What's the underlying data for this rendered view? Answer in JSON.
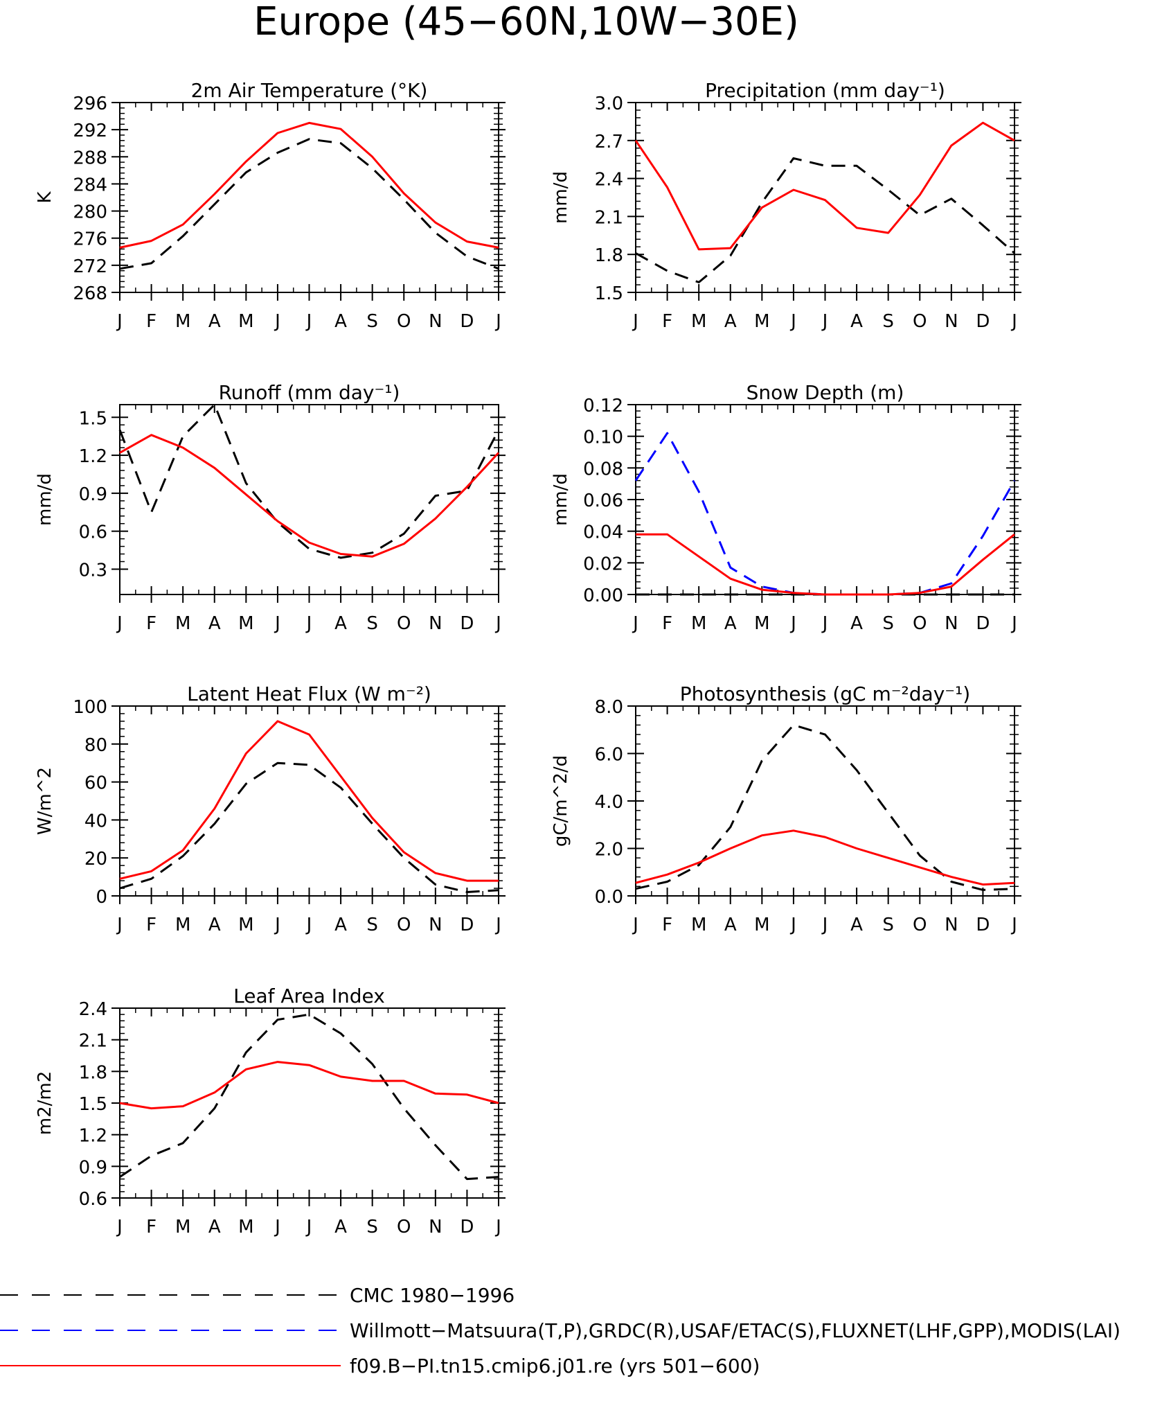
{
  "figure": {
    "title": "Europe (45−60N,10W−30E)",
    "months": [
      "J",
      "F",
      "M",
      "A",
      "M",
      "J",
      "J",
      "A",
      "S",
      "O",
      "N",
      "D",
      "J"
    ],
    "colors": {
      "obs": "#000000",
      "obs_alt": "#0000ff",
      "model": "#ff0000"
    }
  },
  "legend": [
    {
      "key": "obs",
      "label": "CMC 1980−1996",
      "color": "#000000",
      "dashed": true
    },
    {
      "key": "obs_alt",
      "label": "Willmott−Matsuura(T,P),GRDC(R),USAF/ETAC(S),FLUXNET(LHF,GPP),MODIS(LAI)",
      "color": "#0000ff",
      "dashed": true
    },
    {
      "key": "model",
      "label": "f09.B−PI.tn15.cmip6.j01.re (yrs 501−600)",
      "color": "#ff0000",
      "dashed": false
    }
  ],
  "chart_data": [
    {
      "type": "line",
      "title": "2m Air Temperature (°K)",
      "ylabel": "K",
      "ylim": [
        268,
        296
      ],
      "yticks": [
        "268",
        "272",
        "276",
        "280",
        "284",
        "288",
        "292",
        "296"
      ],
      "x": [
        "J",
        "F",
        "M",
        "A",
        "M",
        "J",
        "J",
        "A",
        "S",
        "O",
        "N",
        "D",
        "J"
      ],
      "series": [
        {
          "key": "obs",
          "dashed": true,
          "color": "#000000",
          "values": [
            271.5,
            272.3,
            276.3,
            281.0,
            285.7,
            288.6,
            290.6,
            290.0,
            286.3,
            281.7,
            276.8,
            273.3,
            271.5
          ]
        },
        {
          "key": "model",
          "dashed": false,
          "color": "#ff0000",
          "values": [
            274.6,
            275.6,
            278.0,
            282.5,
            287.3,
            291.5,
            293.0,
            292.1,
            288.0,
            282.6,
            278.3,
            275.5,
            274.6
          ]
        }
      ]
    },
    {
      "type": "line",
      "title": "Precipitation (mm day⁻¹)",
      "ylabel": "mm/d",
      "ylim": [
        1.5,
        3.0
      ],
      "yticks": [
        "1.5",
        "1.8",
        "2.1",
        "2.4",
        "2.7",
        "3.0"
      ],
      "x": [
        "J",
        "F",
        "M",
        "A",
        "M",
        "J",
        "J",
        "A",
        "S",
        "O",
        "N",
        "D",
        "J"
      ],
      "series": [
        {
          "key": "obs",
          "dashed": true,
          "color": "#000000",
          "values": [
            1.81,
            1.67,
            1.58,
            1.79,
            2.21,
            2.56,
            2.5,
            2.5,
            2.31,
            2.11,
            2.24,
            2.03,
            1.81
          ]
        },
        {
          "key": "model",
          "dashed": false,
          "color": "#ff0000",
          "values": [
            2.7,
            2.33,
            1.84,
            1.85,
            2.17,
            2.31,
            2.23,
            2.01,
            1.97,
            2.27,
            2.66,
            2.84,
            2.7
          ]
        }
      ]
    },
    {
      "type": "line",
      "title": "Runoff (mm day⁻¹)",
      "ylabel": "mm/d",
      "ylim": [
        0.1,
        1.6
      ],
      "yticks": [
        "0.3",
        "0.6",
        "0.9",
        "1.2",
        "1.5"
      ],
      "x": [
        "J",
        "F",
        "M",
        "A",
        "M",
        "J",
        "J",
        "A",
        "S",
        "O",
        "N",
        "D",
        "J"
      ],
      "series": [
        {
          "key": "obs",
          "dashed": true,
          "color": "#000000",
          "values": [
            1.4,
            0.75,
            1.35,
            1.6,
            0.98,
            0.67,
            0.46,
            0.39,
            0.43,
            0.58,
            0.88,
            0.92,
            1.4
          ]
        },
        {
          "key": "model",
          "dashed": false,
          "color": "#ff0000",
          "values": [
            1.22,
            1.36,
            1.26,
            1.1,
            0.89,
            0.68,
            0.51,
            0.42,
            0.4,
            0.5,
            0.7,
            0.95,
            1.22
          ]
        }
      ]
    },
    {
      "type": "line",
      "title": "Snow Depth (m)",
      "ylabel": "mm/d",
      "ylim": [
        0,
        0.12
      ],
      "yticks": [
        "0.00",
        "0.02",
        "0.04",
        "0.06",
        "0.08",
        "0.10",
        "0.12"
      ],
      "x": [
        "J",
        "F",
        "M",
        "A",
        "M",
        "J",
        "J",
        "A",
        "S",
        "O",
        "N",
        "D",
        "J"
      ],
      "series": [
        {
          "key": "obs",
          "dashed": true,
          "color": "#000000",
          "values": [
            0,
            0,
            0,
            0,
            0,
            0,
            0,
            0,
            0,
            0,
            0,
            0,
            0
          ]
        },
        {
          "key": "obs_alt",
          "dashed": true,
          "color": "#0000ff",
          "values": [
            0.072,
            0.102,
            0.065,
            0.017,
            0.005,
            0.001,
            0,
            0,
            0,
            0.001,
            0.007,
            0.037,
            0.072
          ]
        },
        {
          "key": "model",
          "dashed": false,
          "color": "#ff0000",
          "values": [
            0.038,
            0.038,
            0.024,
            0.01,
            0.003,
            0.001,
            0,
            0,
            0,
            0.001,
            0.005,
            0.022,
            0.038
          ]
        }
      ]
    },
    {
      "type": "line",
      "title": "Latent Heat Flux (W m⁻²)",
      "ylabel": "W/m^2",
      "ylim": [
        0,
        100
      ],
      "yticks": [
        "0",
        "20",
        "40",
        "60",
        "80",
        "100"
      ],
      "x": [
        "J",
        "F",
        "M",
        "A",
        "M",
        "J",
        "J",
        "A",
        "S",
        "O",
        "N",
        "D",
        "J"
      ],
      "series": [
        {
          "key": "obs",
          "dashed": true,
          "color": "#000000",
          "values": [
            4,
            9,
            21,
            38,
            59,
            70,
            69,
            57,
            38,
            20,
            6,
            2,
            3
          ]
        },
        {
          "key": "model",
          "dashed": false,
          "color": "#ff0000",
          "values": [
            9,
            13,
            24,
            46,
            75,
            92,
            85,
            63,
            41,
            23,
            12,
            8,
            8
          ]
        }
      ]
    },
    {
      "type": "line",
      "title": "Photosynthesis (gC m⁻²day⁻¹)",
      "ylabel": "gC/m^2/d",
      "ylim": [
        0,
        8
      ],
      "yticks": [
        "0.0",
        "2.0",
        "4.0",
        "6.0",
        "8.0"
      ],
      "x": [
        "J",
        "F",
        "M",
        "A",
        "M",
        "J",
        "J",
        "A",
        "S",
        "O",
        "N",
        "D",
        "J"
      ],
      "series": [
        {
          "key": "obs",
          "dashed": true,
          "color": "#000000",
          "values": [
            0.3,
            0.6,
            1.3,
            2.9,
            5.7,
            7.2,
            6.8,
            5.3,
            3.5,
            1.7,
            0.6,
            0.25,
            0.3
          ]
        },
        {
          "key": "model",
          "dashed": false,
          "color": "#ff0000",
          "values": [
            0.55,
            0.9,
            1.4,
            2.0,
            2.55,
            2.75,
            2.48,
            2.0,
            1.6,
            1.2,
            0.8,
            0.48,
            0.55
          ]
        }
      ]
    },
    {
      "type": "line",
      "title": "Leaf Area Index",
      "ylabel": "m2/m2",
      "ylim": [
        0.6,
        2.4
      ],
      "yticks": [
        "0.6",
        "0.9",
        "1.2",
        "1.5",
        "1.8",
        "2.1",
        "2.4"
      ],
      "x": [
        "J",
        "F",
        "M",
        "A",
        "M",
        "J",
        "J",
        "A",
        "S",
        "O",
        "N",
        "D",
        "J"
      ],
      "series": [
        {
          "key": "obs",
          "dashed": true,
          "color": "#000000",
          "values": [
            0.8,
            1.0,
            1.12,
            1.45,
            1.98,
            2.29,
            2.34,
            2.16,
            1.87,
            1.45,
            1.1,
            0.78,
            0.8
          ]
        },
        {
          "key": "model",
          "dashed": false,
          "color": "#ff0000",
          "values": [
            1.5,
            1.45,
            1.47,
            1.6,
            1.82,
            1.89,
            1.86,
            1.75,
            1.71,
            1.71,
            1.59,
            1.58,
            1.5
          ]
        }
      ]
    }
  ]
}
